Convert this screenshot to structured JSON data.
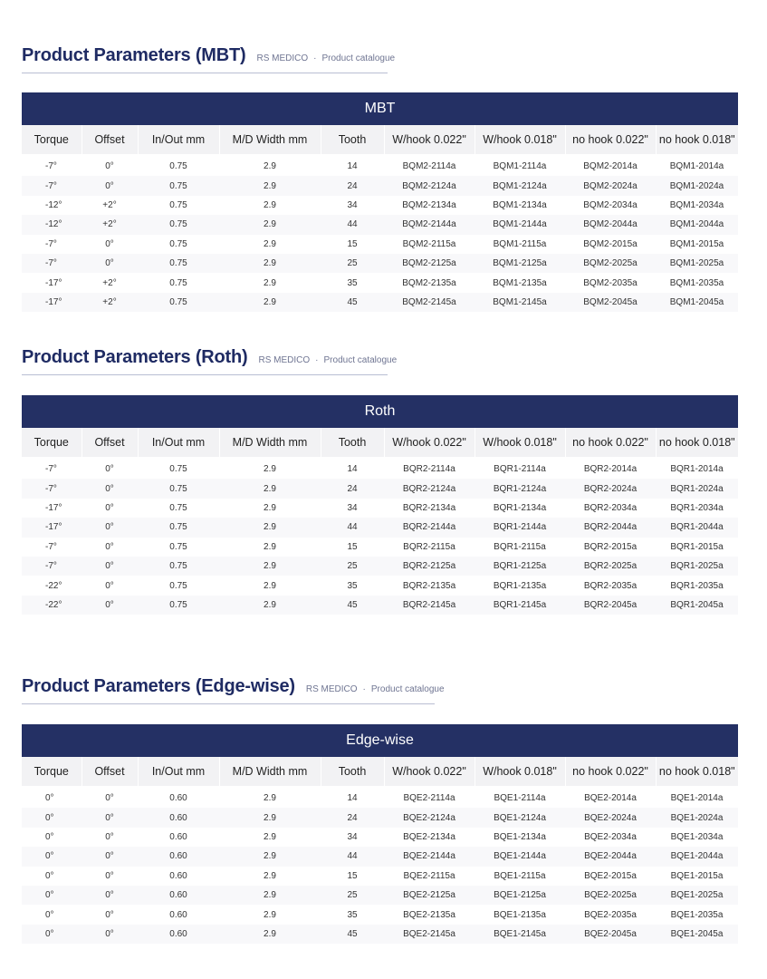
{
  "columns": [
    "Torque",
    "Offset",
    "In/Out mm",
    "M/D Width mm",
    "Tooth",
    "W/hook 0.022\"",
    "W/hook 0.018\"",
    "no hook 0.022\"",
    "no hook 0.018\""
  ],
  "sections": [
    {
      "title": "Product Parameters (MBT)",
      "brand": "RS MEDICO",
      "subtitle": "Product catalogue",
      "banner": "MBT",
      "rows": [
        [
          "-7°",
          "0°",
          "0.75",
          "2.9",
          "14",
          "BQM2-2114a",
          "BQM1-2114a",
          "BQM2-2014a",
          "BQM1-2014a"
        ],
        [
          "-7°",
          "0°",
          "0.75",
          "2.9",
          "24",
          "BQM2-2124a",
          "BQM1-2124a",
          "BQM2-2024a",
          "BQM1-2024a"
        ],
        [
          "-12°",
          "+2°",
          "0.75",
          "2.9",
          "34",
          "BQM2-2134a",
          "BQM1-2134a",
          "BQM2-2034a",
          "BQM1-2034a"
        ],
        [
          "-12°",
          "+2°",
          "0.75",
          "2.9",
          "44",
          "BQM2-2144a",
          "BQM1-2144a",
          "BQM2-2044a",
          "BQM1-2044a"
        ],
        [
          "-7°",
          "0°",
          "0.75",
          "2.9",
          "15",
          "BQM2-2115a",
          "BQM1-2115a",
          "BQM2-2015a",
          "BQM1-2015a"
        ],
        [
          "-7°",
          "0°",
          "0.75",
          "2.9",
          "25",
          "BQM2-2125a",
          "BQM1-2125a",
          "BQM2-2025a",
          "BQM1-2025a"
        ],
        [
          "-17°",
          "+2°",
          "0.75",
          "2.9",
          "35",
          "BQM2-2135a",
          "BQM1-2135a",
          "BQM2-2035a",
          "BQM1-2035a"
        ],
        [
          "-17°",
          "+2°",
          "0.75",
          "2.9",
          "45",
          "BQM2-2145a",
          "BQM1-2145a",
          "BQM2-2045a",
          "BQM1-2045a"
        ]
      ]
    },
    {
      "title": "Product Parameters (Roth)",
      "brand": "RS MEDICO",
      "subtitle": "Product catalogue",
      "banner": "Roth",
      "rows": [
        [
          "-7°",
          "0°",
          "0.75",
          "2.9",
          "14",
          "BQR2-2114a",
          "BQR1-2114a",
          "BQR2-2014a",
          "BQR1-2014a"
        ],
        [
          "-7°",
          "0°",
          "0.75",
          "2.9",
          "24",
          "BQR2-2124a",
          "BQR1-2124a",
          "BQR2-2024a",
          "BQR1-2024a"
        ],
        [
          "-17°",
          "0°",
          "0.75",
          "2.9",
          "34",
          "BQR2-2134a",
          "BQR1-2134a",
          "BQR2-2034a",
          "BQR1-2034a"
        ],
        [
          "-17°",
          "0°",
          "0.75",
          "2.9",
          "44",
          "BQR2-2144a",
          "BQR1-2144a",
          "BQR2-2044a",
          "BQR1-2044a"
        ],
        [
          "-7°",
          "0°",
          "0.75",
          "2.9",
          "15",
          "BQR2-2115a",
          "BQR1-2115a",
          "BQR2-2015a",
          "BQR1-2015a"
        ],
        [
          "-7°",
          "0°",
          "0.75",
          "2.9",
          "25",
          "BQR2-2125a",
          "BQR1-2125a",
          "BQR2-2025a",
          "BQR1-2025a"
        ],
        [
          "-22°",
          "0°",
          "0.75",
          "2.9",
          "35",
          "BQR2-2135a",
          "BQR1-2135a",
          "BQR2-2035a",
          "BQR1-2035a"
        ],
        [
          "-22°",
          "0°",
          "0.75",
          "2.9",
          "45",
          "BQR2-2145a",
          "BQR1-2145a",
          "BQR2-2045a",
          "BQR1-2045a"
        ]
      ]
    },
    {
      "title": "Product Parameters (Edge-wise)",
      "brand": "RS MEDICO",
      "subtitle": "Product catalogue",
      "banner": "Edge-wise",
      "rows": [
        [
          "0°",
          "0°",
          "0.60",
          "2.9",
          "14",
          "BQE2-2114a",
          "BQE1-2114a",
          "BQE2-2014a",
          "BQE1-2014a"
        ],
        [
          "0°",
          "0°",
          "0.60",
          "2.9",
          "24",
          "BQE2-2124a",
          "BQE1-2124a",
          "BQE2-2024a",
          "BQE1-2024a"
        ],
        [
          "0°",
          "0°",
          "0.60",
          "2.9",
          "34",
          "BQE2-2134a",
          "BQE1-2134a",
          "BQE2-2034a",
          "BQE1-2034a"
        ],
        [
          "0°",
          "0°",
          "0.60",
          "2.9",
          "44",
          "BQE2-2144a",
          "BQE1-2144a",
          "BQE2-2044a",
          "BQE1-2044a"
        ],
        [
          "0°",
          "0°",
          "0.60",
          "2.9",
          "15",
          "BQE2-2115a",
          "BQE1-2115a",
          "BQE2-2015a",
          "BQE1-2015a"
        ],
        [
          "0°",
          "0°",
          "0.60",
          "2.9",
          "25",
          "BQE2-2125a",
          "BQE1-2125a",
          "BQE2-2025a",
          "BQE1-2025a"
        ],
        [
          "0°",
          "0°",
          "0.60",
          "2.9",
          "35",
          "BQE2-2135a",
          "BQE1-2135a",
          "BQE2-2035a",
          "BQE1-2035a"
        ],
        [
          "0°",
          "0°",
          "0.60",
          "2.9",
          "45",
          "BQE2-2145a",
          "BQE1-2145a",
          "BQE2-2045a",
          "BQE1-2045a"
        ]
      ]
    }
  ]
}
